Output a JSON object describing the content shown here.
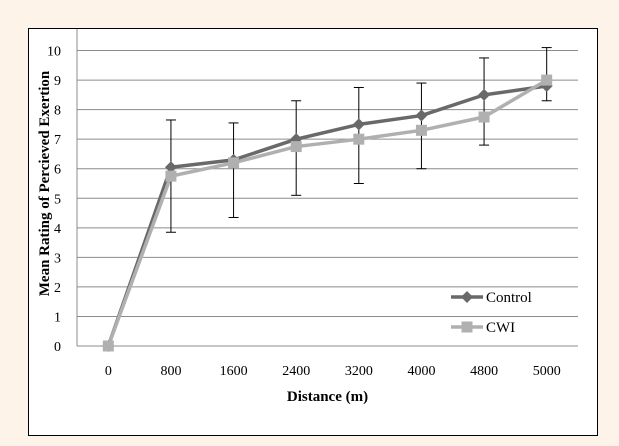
{
  "chart_data": {
    "type": "line",
    "title": "",
    "xlabel": "Distance (m)",
    "ylabel": "Mean Rating of Percieved Exertion",
    "categories": [
      "0",
      "800",
      "1600",
      "2400",
      "3200",
      "4000",
      "4800",
      "5000"
    ],
    "ylim": [
      0,
      11
    ],
    "yticks": [
      0,
      1,
      2,
      3,
      4,
      5,
      6,
      7,
      8,
      9,
      10,
      11
    ],
    "grid": true,
    "legend_position": "bottom-right",
    "series": [
      {
        "name": "Control",
        "color": "#696969",
        "marker": "diamond",
        "values": [
          0,
          6.05,
          6.3,
          7.0,
          7.5,
          7.8,
          8.5,
          8.8
        ],
        "error_low": [
          null,
          3.85,
          4.35,
          5.1,
          5.5,
          6.0,
          6.8,
          8.3
        ],
        "error_high": [
          null,
          7.65,
          7.55,
          8.3,
          8.75,
          8.9,
          9.75,
          10.1
        ]
      },
      {
        "name": "CWI",
        "color": "#b0b0b0",
        "marker": "square",
        "values": [
          0,
          5.75,
          6.2,
          6.75,
          7.0,
          7.3,
          7.75,
          9.0
        ]
      }
    ]
  }
}
